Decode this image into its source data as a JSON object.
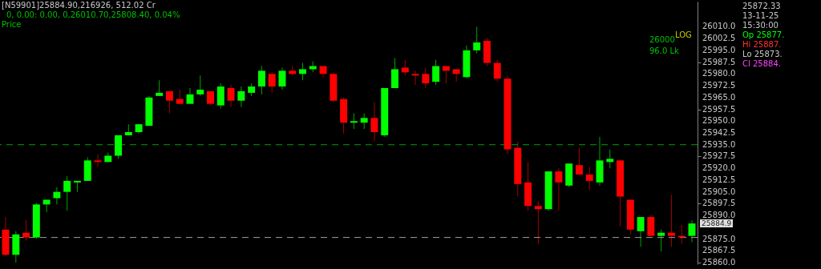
{
  "chart_data": {
    "type": "candlestick",
    "annotations": [
      "[N59901]25884.90,216926,  512.02 Cr",
      "0,   0.00:   0.00,   0,26010.70,25808.40, 0.04%",
      "Price",
      "LOG",
      "26000",
      "96.0 Lk",
      "25872.33",
      "13-11-25",
      "15:30:00",
      "Op 25877.",
      "Hi 25887.",
      "Lo 25873.",
      "Cl 25884.",
      "25884.9"
    ],
    "categories": [
      null,
      null,
      null,
      null,
      null,
      null,
      null,
      null,
      null,
      null,
      null,
      null,
      null,
      null,
      null,
      null,
      null,
      null,
      null,
      null,
      null,
      null,
      null,
      null,
      null,
      null,
      null,
      null,
      null,
      null,
      null,
      null,
      null,
      null,
      null,
      null,
      null,
      null,
      null,
      null,
      null,
      null,
      null,
      null,
      null,
      null,
      null,
      null,
      null,
      null,
      null,
      null,
      null,
      null,
      null,
      null,
      null,
      null,
      null,
      null,
      null,
      null,
      null,
      null,
      null,
      null,
      null,
      null
    ],
    "ohlc": [
      [
        25881,
        25889,
        25864,
        25865
      ],
      [
        25865,
        25880,
        25860,
        25878
      ],
      [
        25879,
        25887,
        25874,
        25876
      ],
      [
        25876,
        25898,
        25875,
        25897
      ],
      [
        25897,
        25900,
        25892,
        25900
      ],
      [
        25901,
        25908,
        25897,
        25905
      ],
      [
        25905,
        25915,
        25893,
        25912
      ],
      [
        25911,
        25912,
        25905,
        25912
      ],
      [
        25912,
        25927,
        25912,
        25925
      ],
      [
        25925,
        25929,
        25921,
        25924
      ],
      [
        25924,
        25930,
        25924,
        25928
      ],
      [
        25928,
        25941,
        25926,
        25941
      ],
      [
        25941,
        25948,
        25941,
        25943
      ],
      [
        25943,
        25948,
        25942,
        25948
      ],
      [
        25947,
        25966,
        25947,
        25965
      ],
      [
        25966,
        25976,
        25966,
        25968
      ],
      [
        25969,
        25969,
        25955,
        25963
      ],
      [
        25964,
        25970,
        25961,
        25961
      ],
      [
        25961,
        25971,
        25961,
        25967
      ],
      [
        25967,
        25979,
        25966,
        25970
      ],
      [
        25969,
        25969,
        25960,
        25961
      ],
      [
        25960,
        25974,
        25958,
        25972
      ],
      [
        25971,
        25973,
        25959,
        25963
      ],
      [
        25963,
        25972,
        25959,
        25969
      ],
      [
        25968,
        25974,
        25966,
        25972
      ],
      [
        25972,
        25985,
        25967,
        25982
      ],
      [
        25980,
        25981,
        25968,
        25972
      ],
      [
        25972,
        25984,
        25970,
        25982
      ],
      [
        25982,
        25985,
        25979,
        25980
      ],
      [
        25980,
        25987,
        25976,
        25983
      ],
      [
        25983,
        25988,
        25981,
        25985
      ],
      [
        25985,
        25985,
        25978,
        25980
      ],
      [
        25980,
        25981,
        25962,
        25963
      ],
      [
        25964,
        25965,
        25942,
        25949
      ],
      [
        25949,
        25955,
        25945,
        25950
      ],
      [
        25949,
        25955,
        25945,
        25952
      ],
      [
        25952,
        25962,
        25937,
        25943
      ],
      [
        25941,
        25971,
        25940,
        25971
      ],
      [
        25971,
        25990,
        25971,
        25983
      ],
      [
        25984,
        25989,
        25979,
        25981
      ],
      [
        25980,
        25982,
        25973,
        25979
      ],
      [
        25980,
        25984,
        25971,
        25974
      ],
      [
        25975,
        25989,
        25973,
        25985
      ],
      [
        25985,
        25985,
        25974,
        25982
      ],
      [
        25983,
        25983,
        25975,
        25980
      ],
      [
        25978,
        25998,
        25977,
        25995
      ],
      [
        25995,
        26010,
        25993,
        26000
      ],
      [
        26001,
        26003,
        25985,
        25987
      ],
      [
        25987,
        25989,
        25975,
        25977
      ],
      [
        25977,
        25979,
        25929,
        25932
      ],
      [
        25933,
        25937,
        25902,
        25910
      ],
      [
        25911,
        25924,
        25893,
        25896
      ],
      [
        25896,
        25899,
        25872,
        25894
      ],
      [
        25894,
        25918,
        25893,
        25918
      ],
      [
        25918,
        25920,
        25893,
        25911
      ],
      [
        25909,
        25923,
        25908,
        25923
      ],
      [
        25922,
        25933,
        25916,
        25916
      ],
      [
        25916,
        25921,
        25906,
        25912
      ],
      [
        25911,
        25940,
        25909,
        25925
      ],
      [
        25924,
        25932,
        25920,
        25926
      ],
      [
        25925,
        25925,
        25883,
        25902
      ],
      [
        25900,
        25900,
        25878,
        25881
      ],
      [
        25880,
        25889,
        25870,
        25889
      ],
      [
        25889,
        25890,
        25877,
        25877
      ],
      [
        25877,
        25881,
        25867,
        25879
      ],
      [
        25879,
        25903,
        25870,
        25877
      ],
      [
        25877,
        25884,
        25872,
        25876
      ],
      [
        25877,
        25887,
        25873,
        25884.9
      ]
    ],
    "colors": [
      "#ff0000",
      "#00ff00",
      "#ff0000",
      "#00ff00",
      "#00ff00",
      "#00ff00",
      "#00ff00",
      "#00ff00",
      "#00ff00",
      "#ff0000",
      "#00ff00",
      "#00ff00",
      "#00ff00",
      "#00ff00",
      "#00ff00",
      "#00ff00",
      "#ff0000",
      "#ff0000",
      "#00ff00",
      "#00ff00",
      "#ff0000",
      "#00ff00",
      "#ff0000",
      "#00ff00",
      "#00ff00",
      "#00ff00",
      "#ff0000",
      "#00ff00",
      "#ff0000",
      "#00ff00",
      "#00ff00",
      "#ff0000",
      "#ff0000",
      "#ff0000",
      "#00ff00",
      "#00ff00",
      "#ff0000",
      "#00ff00",
      "#00ff00",
      "#ff0000",
      "#ff0000",
      "#ff0000",
      "#00ff00",
      "#ff0000",
      "#ff0000",
      "#00ff00",
      "#00ff00",
      "#ff0000",
      "#ff0000",
      "#ff0000",
      "#ff0000",
      "#ff0000",
      "#ff0000",
      "#00ff00",
      "#ff0000",
      "#00ff00",
      "#ff0000",
      "#ff0000",
      "#00ff00",
      "#00ff00",
      "#ff0000",
      "#ff0000",
      "#00ff00",
      "#ff0000",
      "#00ff00",
      "#ff0000",
      "#ff0000",
      "#00ff00"
    ],
    "ylim": [
      25859,
      26026
    ],
    "yticks": [
      {
        "value": 26010,
        "label": "26010.0"
      },
      {
        "value": 26002.5,
        "label": "26002.5"
      },
      {
        "value": 25995,
        "label": "25995.0"
      },
      {
        "value": 25987.5,
        "label": "25987.5"
      },
      {
        "value": 25980,
        "label": "25980.0"
      },
      {
        "value": 25972.5,
        "label": "25972.5"
      },
      {
        "value": 25965,
        "label": "25965.0"
      },
      {
        "value": 25957.5,
        "label": "25957.5"
      },
      {
        "value": 25950,
        "label": "25950.0"
      },
      {
        "value": 25942.5,
        "label": "25942.5"
      },
      {
        "value": 25935,
        "label": "25935.0"
      },
      {
        "value": 25927.5,
        "label": "25927.5"
      },
      {
        "value": 25920,
        "label": "25920.0"
      },
      {
        "value": 25912.5,
        "label": "25912.5"
      },
      {
        "value": 25905,
        "label": "25905.0"
      },
      {
        "value": 25897.5,
        "label": "25897.5"
      },
      {
        "value": 25890,
        "label": "25890.0"
      },
      {
        "value": 25875,
        "label": "25875.0"
      },
      {
        "value": 25867.5,
        "label": "25867.5"
      },
      {
        "value": 25860,
        "label": "25860.0"
      }
    ],
    "ref_lines": [
      {
        "axis": "y",
        "value": 25935,
        "color": "#00a000",
        "line_style": "dashed"
      },
      {
        "axis": "y",
        "value": 25876,
        "color": "#a0a0a0",
        "line_style": "dashed"
      }
    ],
    "grid": false,
    "tick_labels": "y"
  }
}
